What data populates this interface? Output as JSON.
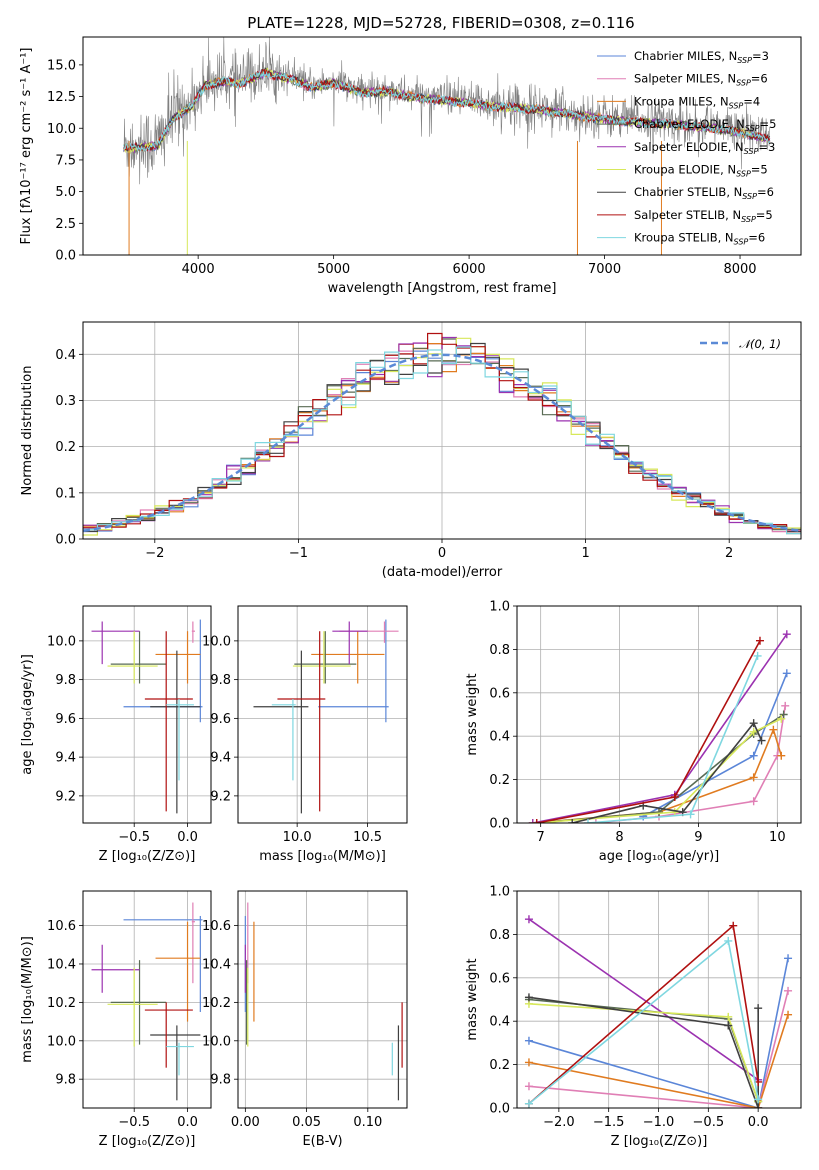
{
  "figure": {
    "title": "PLATE=1228, MJD=52728, FIBERID=0308, z=0.116"
  },
  "colors": {
    "chabrier_miles": "#5b86d8",
    "salpeter_miles": "#e07fb5",
    "kroupa_miles": "#e07b20",
    "chabrier_elodie": "#596b54",
    "salpeter_elodie": "#9b32b0",
    "kroupa_elodie": "#d7e85a",
    "chabrier_stelib": "#404040",
    "salpeter_stelib": "#b01010",
    "kroupa_stelib": "#7fd7e0",
    "normal": "#5b8ad6",
    "grid": "#b0b0b0"
  },
  "chart_data": [
    {
      "id": "spectrum",
      "type": "line",
      "title": "PLATE=1228, MJD=52728, FIBERID=0308, z=0.116",
      "xlabel": "wavelength [Angstrom, rest frame]",
      "ylabel": "Flux [fλ10⁻¹⁷ erg cm⁻² s⁻¹ A⁻¹]",
      "xlim": [
        3150,
        8450
      ],
      "ylim": [
        0,
        17.2
      ],
      "xticks": [
        "4000",
        "5000",
        "6000",
        "7000",
        "8000"
      ],
      "yticks": [
        "0.0",
        "2.5",
        "5.0",
        "7.5",
        "10.0",
        "12.5",
        "15.0"
      ],
      "grid": false,
      "legend_position": "top-right",
      "legend": [
        {
          "label": "Chabrier MILES, N",
          "sub": "SSP",
          "tail": "=3"
        },
        {
          "label": "Salpeter MILES, N",
          "sub": "SSP",
          "tail": "=6"
        },
        {
          "label": "Kroupa MILES, N",
          "sub": "SSP",
          "tail": "=4"
        },
        {
          "label": "Chabrier ELODIE, N",
          "sub": "SSP",
          "tail": "=5"
        },
        {
          "label": "Salpeter ELODIE, N",
          "sub": "SSP",
          "tail": "=3"
        },
        {
          "label": "Kroupa ELODIE, N",
          "sub": "SSP",
          "tail": "=5"
        },
        {
          "label": "Chabrier STELIB, N",
          "sub": "SSP",
          "tail": "=6"
        },
        {
          "label": "Salpeter STELIB, N",
          "sub": "SSP",
          "tail": "=5"
        },
        {
          "label": "Kroupa STELIB, N",
          "sub": "SSP",
          "tail": "=6"
        }
      ],
      "continuum": [
        [
          3450,
          8.6
        ],
        [
          3700,
          8.8
        ],
        [
          3820,
          11.0
        ],
        [
          3960,
          12.0
        ],
        [
          4050,
          13.6
        ],
        [
          4200,
          13.9
        ],
        [
          4300,
          13.7
        ],
        [
          4500,
          14.6
        ],
        [
          4700,
          14.0
        ],
        [
          4850,
          13.4
        ],
        [
          5000,
          13.8
        ],
        [
          5200,
          13.0
        ],
        [
          5400,
          13.1
        ],
        [
          5600,
          12.6
        ],
        [
          5900,
          12.3
        ],
        [
          6200,
          11.9
        ],
        [
          6500,
          11.7
        ],
        [
          6800,
          11.2
        ],
        [
          7100,
          10.8
        ],
        [
          7400,
          10.6
        ],
        [
          7700,
          10.3
        ],
        [
          8000,
          9.9
        ],
        [
          8220,
          9.3
        ]
      ]
    },
    {
      "id": "residuals",
      "type": "histogram",
      "xlabel": "(data-model)/error",
      "ylabel": "Normed distribution",
      "xlim": [
        -2.5,
        2.5
      ],
      "ylim": [
        0,
        0.47
      ],
      "xticks": [
        "−2",
        "−1",
        "0",
        "1",
        "2"
      ],
      "yticks": [
        "0.0",
        "0.1",
        "0.2",
        "0.3",
        "0.4"
      ],
      "grid": true,
      "legend_position": "top-right",
      "legend": [
        {
          "label": "𝒩(0, 1)"
        }
      ],
      "bin_width": 0.1
    },
    {
      "id": "age-vs-Z",
      "type": "errorbar",
      "xlabel": "Z [log₁₀(Z/Z⊙)]",
      "ylabel": "age  [log₁₀(age/yr)]",
      "xlim": [
        -0.98,
        0.22
      ],
      "ylim": [
        9.06,
        10.18
      ],
      "xticks": [
        "−0.5",
        "0.0"
      ],
      "yticks": [
        "9.2",
        "9.4",
        "9.6",
        "9.8",
        "10.0"
      ],
      "grid": true
    },
    {
      "id": "age-vs-mass",
      "type": "errorbar",
      "xlabel": "mass [log₁₀(M/M⊙)]",
      "ylabel": "",
      "xlim": [
        9.58,
        10.78
      ],
      "ylim": [
        9.06,
        10.18
      ],
      "xticks": [
        "10.0",
        "10.5"
      ],
      "yticks": [
        "9.2",
        "9.4",
        "9.6",
        "9.8",
        "10.0"
      ],
      "grid": true
    },
    {
      "id": "weight-vs-age",
      "type": "line",
      "xlabel": "age  [log₁₀(age/yr)]",
      "ylabel": "mass weight",
      "xlim": [
        6.7,
        10.3
      ],
      "ylim": [
        0,
        1.0
      ],
      "xticks": [
        "7",
        "8",
        "9",
        "10"
      ],
      "yticks": [
        "0.0",
        "0.2",
        "0.4",
        "0.6",
        "0.8",
        "1.0"
      ],
      "grid": true
    },
    {
      "id": "mass-vs-Z",
      "type": "errorbar",
      "xlabel": "Z [log₁₀(Z/Z⊙)]",
      "ylabel": "mass [log₁₀(M/M⊙)]",
      "xlim": [
        -0.98,
        0.22
      ],
      "ylim": [
        9.65,
        10.78
      ],
      "xticks": [
        "−0.5",
        "0.0"
      ],
      "yticks": [
        "9.8",
        "10.0",
        "10.2",
        "10.4",
        "10.6"
      ],
      "grid": true
    },
    {
      "id": "mass-vs-ebv",
      "type": "errorbar",
      "xlabel": "E(B-V)",
      "ylabel": "",
      "xlim": [
        -0.006,
        0.132
      ],
      "ylim": [
        9.65,
        10.78
      ],
      "xticks": [
        "0.00",
        "0.05",
        "0.10"
      ],
      "yticks": [
        "9.8",
        "10.0",
        "10.2",
        "10.4",
        "10.6"
      ],
      "grid": true
    },
    {
      "id": "weight-vs-Z",
      "type": "line",
      "xlabel": "Z [log₁₀(Z/Z⊙)]",
      "ylabel": "mass weight",
      "xlim": [
        -2.42,
        0.43
      ],
      "ylim": [
        0,
        1.0
      ],
      "xticks": [
        "−2.0",
        "−1.5",
        "−1.0",
        "−0.5",
        "0.0"
      ],
      "yticks": [
        "0.0",
        "0.2",
        "0.4",
        "0.6",
        "0.8",
        "1.0"
      ],
      "grid": true
    }
  ],
  "models": [
    {
      "key": "chabrier_miles",
      "Z": 0.12,
      "Zlo": -0.6,
      "Zhi": 0.14,
      "age": 9.66,
      "age_lo": 9.58,
      "age_hi": 10.11,
      "mass": 10.63,
      "mass_lo": 10.15,
      "mass_hi": 10.65,
      "ebv": 0.0,
      "w_age": [
        [
          8.3,
          0.03
        ],
        [
          9.7,
          0.31
        ],
        [
          10.12,
          0.69
        ]
      ],
      "w_Z": [
        [
          -2.3,
          0.31
        ],
        [
          0.0,
          0.0
        ],
        [
          0.3,
          0.69
        ]
      ]
    },
    {
      "key": "salpeter_miles",
      "Z": 0.05,
      "Zlo": 0.04,
      "Zhi": 0.07,
      "age": 10.05,
      "age_lo": 9.99,
      "age_hi": 10.1,
      "mass": 10.62,
      "mass_lo": 10.3,
      "mass_hi": 10.72,
      "ebv": 0.002,
      "w_age": [
        [
          7.7,
          0.0
        ],
        [
          8.5,
          0.03
        ],
        [
          9.7,
          0.1
        ],
        [
          10.0,
          0.31
        ],
        [
          10.1,
          0.54
        ]
      ],
      "w_Z": [
        [
          -2.3,
          0.1
        ],
        [
          0.0,
          0.0
        ],
        [
          0.3,
          0.54
        ]
      ]
    },
    {
      "key": "kroupa_miles",
      "Z": 0.0,
      "Zlo": -0.3,
      "Zhi": 0.12,
      "age": 9.93,
      "age_lo": 9.78,
      "age_hi": 10.05,
      "mass": 10.43,
      "mass_lo": 10.1,
      "mass_hi": 10.62,
      "ebv": 0.007,
      "w_age": [
        [
          6.9,
          0.0
        ],
        [
          8.5,
          0.05
        ],
        [
          9.7,
          0.21
        ],
        [
          9.95,
          0.43
        ],
        [
          10.05,
          0.31
        ]
      ],
      "w_Z": [
        [
          -2.3,
          0.21
        ],
        [
          0.0,
          0.0
        ],
        [
          0.3,
          0.43
        ]
      ]
    },
    {
      "key": "chabrier_elodie",
      "Z": -0.45,
      "Zlo": -0.72,
      "Zhi": -0.2,
      "age": 9.88,
      "age_lo": 9.78,
      "age_hi": 10.05,
      "mass": 10.2,
      "mass_lo": 9.98,
      "mass_hi": 10.42,
      "ebv": 0.001,
      "w_age": [
        [
          6.95,
          0.0
        ],
        [
          8.5,
          0.05
        ],
        [
          9.7,
          0.41
        ],
        [
          10.08,
          0.5
        ]
      ],
      "w_Z": [
        [
          -2.3,
          0.5
        ],
        [
          -0.3,
          0.41
        ],
        [
          0.0,
          0.03
        ]
      ]
    },
    {
      "key": "salpeter_elodie",
      "Z": -0.8,
      "Zlo": -0.9,
      "Zhi": -0.45,
      "age": 10.05,
      "age_lo": 9.88,
      "age_hi": 10.1,
      "mass": 10.37,
      "mass_lo": 10.25,
      "mass_hi": 10.5,
      "ebv": 0.0,
      "w_age": [
        [
          6.9,
          0.0
        ],
        [
          8.7,
          0.13
        ],
        [
          10.12,
          0.87
        ]
      ],
      "w_Z": [
        [
          -2.3,
          0.87
        ],
        [
          0.0,
          0.13
        ]
      ]
    },
    {
      "key": "kroupa_elodie",
      "Z": -0.5,
      "Zlo": -0.75,
      "Zhi": -0.28,
      "age": 9.87,
      "age_lo": 9.78,
      "age_hi": 10.05,
      "mass": 10.19,
      "mass_lo": 9.97,
      "mass_hi": 10.38,
      "ebv": 0.002,
      "w_age": [
        [
          6.95,
          0.0
        ],
        [
          8.7,
          0.05
        ],
        [
          9.7,
          0.42
        ],
        [
          10.05,
          0.48
        ]
      ],
      "w_Z": [
        [
          -2.3,
          0.48
        ],
        [
          -0.3,
          0.42
        ],
        [
          0.0,
          0.03
        ]
      ]
    },
    {
      "key": "chabrier_stelib",
      "Z": -0.1,
      "Zlo": -0.35,
      "Zhi": 0.12,
      "age": 9.66,
      "age_lo": 9.11,
      "age_hi": 9.95,
      "mass": 10.03,
      "mass_lo": 9.69,
      "mass_hi": 10.08,
      "ebv": 0.125,
      "w_age": [
        [
          7.4,
          0.0
        ],
        [
          8.3,
          0.08
        ],
        [
          8.8,
          0.05
        ],
        [
          9.7,
          0.46
        ],
        [
          9.8,
          0.38
        ]
      ],
      "w_Z": [
        [
          -2.3,
          0.51
        ],
        [
          -0.3,
          0.38
        ],
        [
          0.0,
          0.0
        ],
        [
          0.0,
          0.46
        ]
      ]
    },
    {
      "key": "salpeter_stelib",
      "Z": -0.2,
      "Zlo": -0.4,
      "Zhi": 0.05,
      "age": 9.7,
      "age_lo": 9.12,
      "age_hi": 10.05,
      "mass": 10.16,
      "mass_lo": 9.86,
      "mass_hi": 10.2,
      "ebv": 0.128,
      "w_age": [
        [
          6.95,
          0.0
        ],
        [
          8.7,
          0.12
        ],
        [
          9.78,
          0.84
        ]
      ],
      "w_Z": [
        [
          -2.3,
          0.02
        ],
        [
          -0.25,
          0.84
        ],
        [
          0.0,
          0.12
        ]
      ]
    },
    {
      "key": "kroupa_stelib",
      "Z": -0.08,
      "Zlo": -0.2,
      "Zhi": 0.06,
      "age": 9.67,
      "age_lo": 9.28,
      "age_hi": 9.7,
      "mass": 9.97,
      "mass_lo": 9.82,
      "mass_hi": 9.99,
      "ebv": 0.12,
      "w_age": [
        [
          7.6,
          0.0
        ],
        [
          8.9,
          0.04
        ],
        [
          9.75,
          0.77
        ]
      ],
      "w_Z": [
        [
          -2.3,
          0.02
        ],
        [
          -0.3,
          0.77
        ],
        [
          0.0,
          0.04
        ]
      ]
    }
  ]
}
